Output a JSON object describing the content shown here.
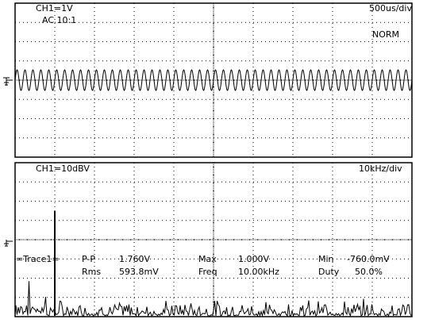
{
  "top_panel": {
    "channel": "CH1=1V",
    "coupling": "AC 10:1",
    "timebase": "500us/div",
    "mode": "NORM"
  },
  "bottom_panel": {
    "channel": "CH1=10dBV",
    "scale": "10kHz/div"
  },
  "measurements": {
    "title": "=Trace1=",
    "rows": [
      [
        "P-P",
        "1.760V",
        "Max",
        "1.000V",
        "Min",
        "-760.0mV"
      ],
      [
        "Rms",
        "593.8mV",
        "Freq",
        "10.00kHz",
        "Duty",
        "50.0%"
      ]
    ]
  }
}
